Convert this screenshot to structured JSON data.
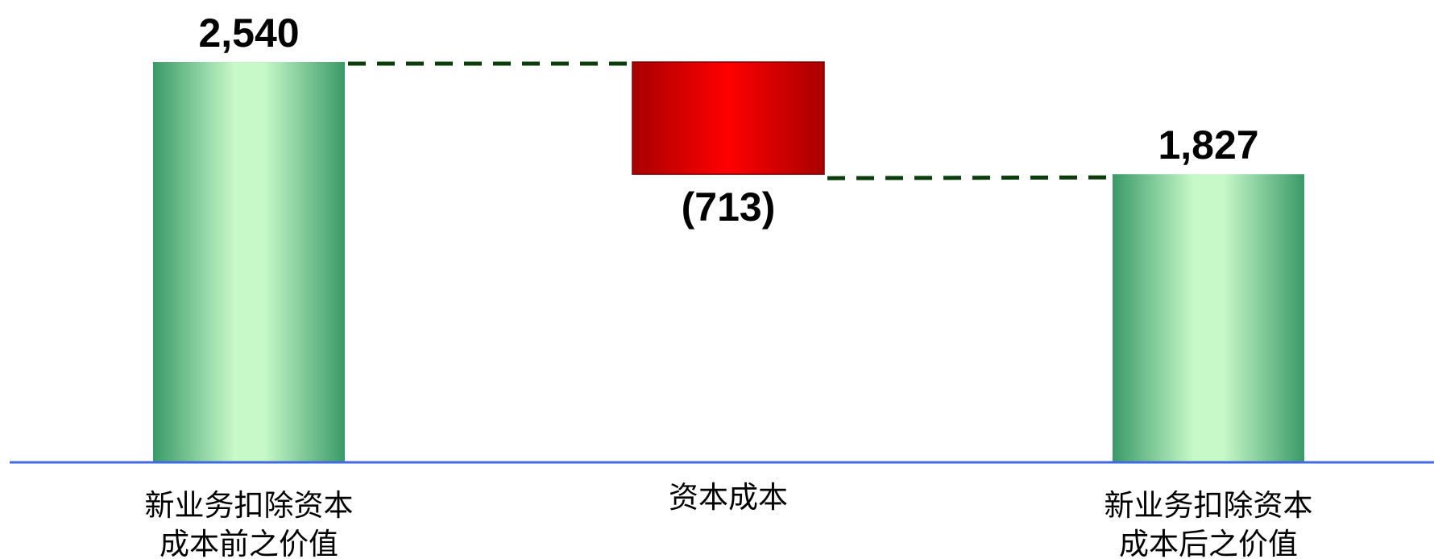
{
  "chart_data": {
    "type": "bar",
    "subtype": "waterfall",
    "categories": [
      [
        "新业务扣除资本",
        "成本前之价值"
      ],
      [
        "资本成本"
      ],
      [
        "新业务扣除资本",
        "成本后之价值"
      ]
    ],
    "values": [
      2540,
      -713,
      1827
    ],
    "bar_kinds": [
      "total",
      "delta",
      "total"
    ],
    "data_labels": [
      "2,540",
      "(713)",
      "1,827"
    ],
    "title": "",
    "xlabel": "",
    "ylabel": "",
    "ylim": [
      0,
      2700
    ],
    "grid": false,
    "legend": "none",
    "connectors": "dashed",
    "colors": {
      "total_edge": "#3a9a68",
      "total_center": "#c6f8c8",
      "negative_edge": "#a80000",
      "negative_center": "#ff0000",
      "negative_border": "#7a0000",
      "connector": "#0b3d0b",
      "baseline": "#4169e1"
    }
  }
}
